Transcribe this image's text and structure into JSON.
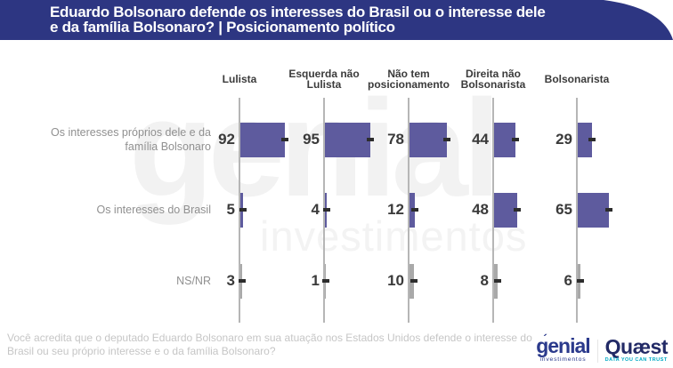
{
  "header": {
    "title": "Eduardo Bolsonaro defende os interesses do Brasil ou o interesse dele\ne da família Bolsonaro? | Posicionamento político",
    "band_color": "#2d3682"
  },
  "chart_data": {
    "type": "bar",
    "orientation": "horizontal",
    "unit": "% of respondents",
    "title": "Eduardo Bolsonaro defende os interesses do Brasil ou o interesse dele e da família Bolsonaro? | Posicionamento político",
    "categories": [
      "Lulista",
      "Esquerda não Lulista",
      "Não tem posicionamento",
      "Direita não Bolsonarista",
      "Bolsonarista"
    ],
    "category_display_lines": [
      "Lulista",
      "Esquerda não\nLulista",
      "Não tem\nposicionamento",
      "Direita não\nBolsonarista",
      "Bolsonarista"
    ],
    "series": [
      {
        "name": "Os interesses próprios dele e da família Bolsonaro",
        "values": [
          92,
          95,
          78,
          44,
          29
        ],
        "color": "#5e5b9e"
      },
      {
        "name": "Os interesses do Brasil",
        "values": [
          5,
          4,
          12,
          48,
          65
        ],
        "color": "#5e5b9e"
      },
      {
        "name": "NS/NR",
        "values": [
          3,
          1,
          10,
          8,
          6
        ],
        "color": "#a9a9a9"
      }
    ],
    "value_range": [
      0,
      100
    ],
    "grid": "vertical-baseline-per-category",
    "legend": "none"
  },
  "watermark": {
    "line1": "genial",
    "line2": "investimentos"
  },
  "footnote": "Você acredita que o deputado Eduardo Bolsonaro em sua atuação nos Estados Unidos defende o interesse do Brasil ou seu próprio interesse e o da família Bolsonaro?",
  "footer_logos": {
    "genial": {
      "name": "genial",
      "tick": "´",
      "sub": "investimentos",
      "color": "#2b3a8c"
    },
    "quaest": {
      "name": "Quæst",
      "tagline": "DATA YOU CAN TRUST",
      "color": "#222a66",
      "tagline_color": "#00a9c4"
    }
  },
  "colors": {
    "band": "#2d3682",
    "bar_purple": "#5e5b9e",
    "bar_gray": "#a9a9a9",
    "axis_line": "#b6b6b6",
    "value_text": "#3a3a3a",
    "row_label_text": "#909090",
    "footnote_text": "#c6c6c6",
    "dash_marker": "#2d2d2d"
  }
}
